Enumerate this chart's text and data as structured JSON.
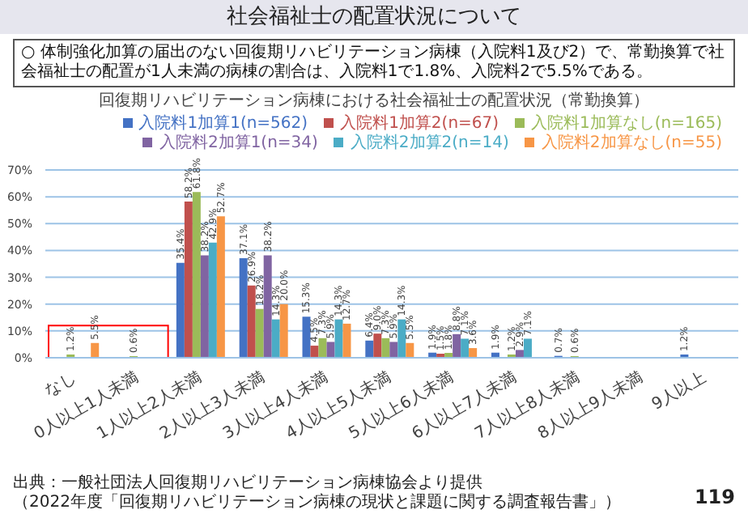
{
  "chart_data": {
    "type": "bar",
    "title": "社会福祉士の配置状況について",
    "subtitle": "回復期リハビリテーション病棟における社会福祉士の配置状況（常勤換算）",
    "annotations": [
      "○ 体制強化加算の届出のない回復期リハビリテーション病棟（入院料1及び2）で、常勤換算で社会福祉士の配置が1人未満の病棟の割合は、入院料1で1.8%、入院料2で5.5%である。",
      "出典：一般社団法人回復期リハビリテーション病棟協会より提供",
      "（2022年度「回復期リハビリテーション病棟の現状と課題に関する調査報告書」）",
      "119"
    ],
    "categories": [
      "なし",
      "0人以上1人未満",
      "1人以上2人未満",
      "2人以上3人未満",
      "3人以上4人未満",
      "4人以上5人未満",
      "5人以上6人未満",
      "6人以上7人未満",
      "7人以上8人未満",
      "8人以上9人未満",
      "9人以上"
    ],
    "series": [
      {
        "name": "入院料1加算1(n=562)",
        "color": "#4472c4",
        "values": [
          0,
          0,
          35.4,
          37.1,
          15.3,
          6.4,
          1.9,
          1.9,
          0.7,
          0.2,
          1.2
        ],
        "value_labels": [
          null,
          null,
          "35.4%",
          "37.1%",
          "15.3%",
          "6.4%",
          "1.9%",
          "1.9%",
          "0.7%",
          null,
          "1.2%"
        ]
      },
      {
        "name": "入院料1加算2(n=67)",
        "color": "#c0504d",
        "values": [
          0,
          0,
          58.2,
          26.9,
          4.5,
          9.0,
          1.5,
          0,
          0,
          0,
          0
        ],
        "value_labels": [
          null,
          null,
          "58.2%",
          "26.9%",
          "4.5%",
          "9.0%",
          "1.5%",
          null,
          null,
          null,
          null
        ]
      },
      {
        "name": "入院料1加算なし(n=165)",
        "color": "#9bbb59",
        "values": [
          1.2,
          0.6,
          61.8,
          18.2,
          7.3,
          7.3,
          1.8,
          1.2,
          0.6,
          0,
          0
        ],
        "value_labels": [
          "1.2%",
          "0.6%",
          "61.8%",
          "18.2%",
          "7.3%",
          "7.3%",
          "1.8%",
          "1.2%",
          "0.6%",
          null,
          null
        ]
      },
      {
        "name": "入院料2加算1(n=34)",
        "color": "#8064a2",
        "values": [
          0,
          0,
          38.2,
          38.2,
          5.9,
          5.9,
          8.8,
          2.9,
          0,
          0,
          0
        ],
        "value_labels": [
          null,
          null,
          "38.2%",
          "38.2%",
          "5.9%",
          "5.9%",
          "8.8%",
          "2.9%",
          null,
          null,
          null
        ]
      },
      {
        "name": "入院料2加算2(n=14)",
        "color": "#4bacc6",
        "values": [
          0,
          0,
          42.9,
          14.3,
          14.3,
          14.3,
          7.1,
          7.1,
          0,
          0,
          0
        ],
        "value_labels": [
          null,
          null,
          "42.9%",
          "14.3%",
          "14.3%",
          "14.3%",
          "7.1%",
          "7.1%",
          null,
          null,
          null
        ]
      },
      {
        "name": "入院料2加算なし(n=55)",
        "color": "#f79646",
        "values": [
          5.5,
          0,
          52.7,
          20.0,
          12.7,
          5.5,
          3.6,
          0,
          0,
          0,
          0
        ],
        "value_labels": [
          "5.5%",
          null,
          "52.7%",
          "20.0%",
          "12.7%",
          "5.5%",
          "3.6%",
          null,
          null,
          null,
          null
        ]
      }
    ],
    "ylim": [
      0,
      70
    ],
    "yticks": [
      {
        "value": 0,
        "label": "0%"
      },
      {
        "value": 10,
        "label": "10%"
      },
      {
        "value": 20,
        "label": "20%"
      },
      {
        "value": 30,
        "label": "30%"
      },
      {
        "value": 40,
        "label": "40%"
      },
      {
        "value": 50,
        "label": "50%"
      },
      {
        "value": 60,
        "label": "60%"
      },
      {
        "value": 70,
        "label": "70%"
      }
    ],
    "grid": "y",
    "legend": "top right"
  }
}
